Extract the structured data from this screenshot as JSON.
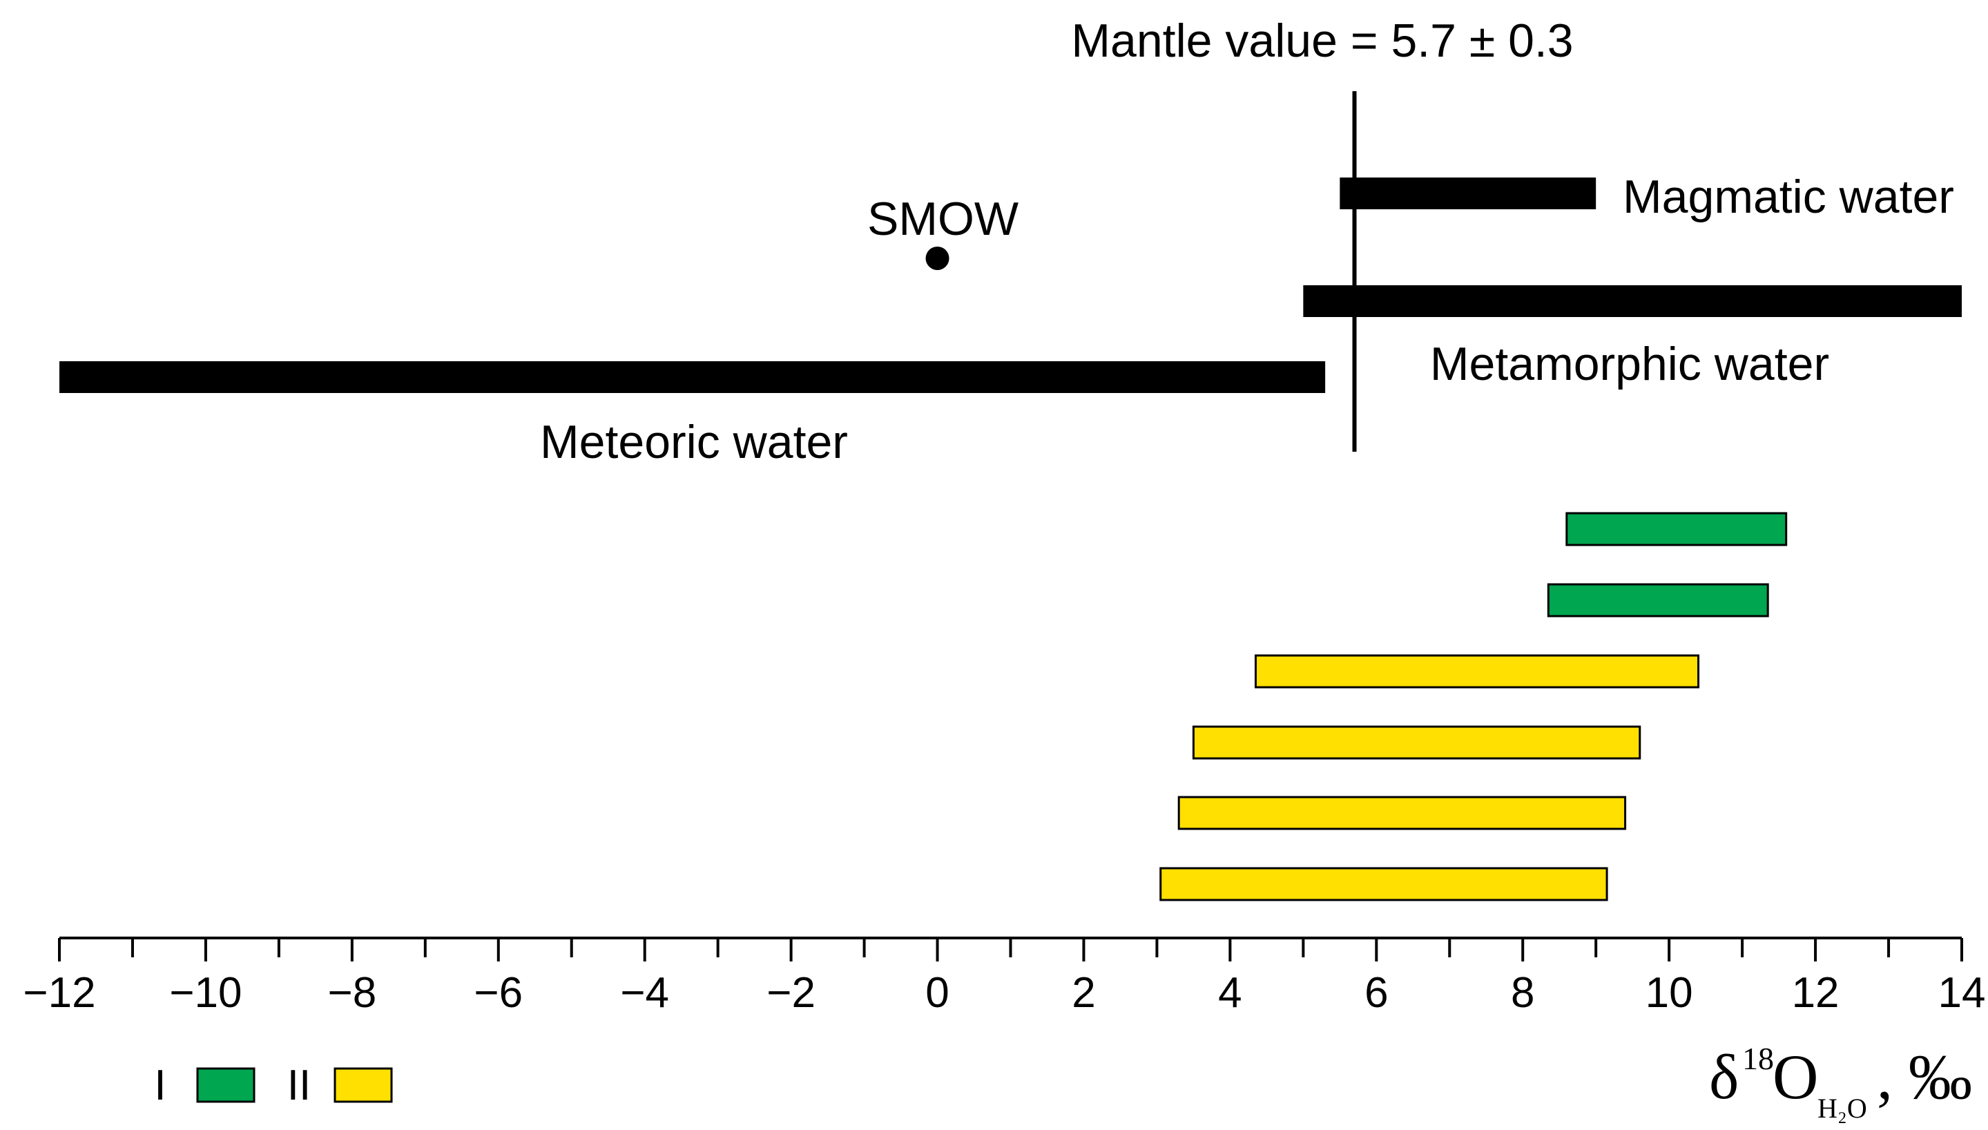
{
  "chart_data": {
    "type": "range-bar",
    "xlim": [
      -12,
      14
    ],
    "xticks": [
      -12,
      -10,
      -8,
      -6,
      -4,
      -2,
      0,
      2,
      4,
      6,
      8,
      10,
      12,
      14
    ],
    "xtick_labels": [
      "−12",
      "−10",
      "−8",
      "−6",
      "−4",
      "−2",
      "0",
      "2",
      "4",
      "6",
      "8",
      "10",
      "12",
      "14"
    ],
    "minor_tick_step": 1,
    "xlabel": {
      "delta": "δ",
      "sup": "18",
      "o": "O",
      "sub": "H₂O",
      "tail": ", ‰"
    },
    "mantle": {
      "value": 5.7,
      "label": "Mantle value = 5.7 ± 0.3"
    },
    "reference_point": {
      "name": "SMOW",
      "x": 0
    },
    "reference_ranges": [
      {
        "name": "Magmatic water",
        "range": [
          5.5,
          9.0
        ]
      },
      {
        "name": "Metamorphic water",
        "range": [
          5.0,
          14.0
        ]
      },
      {
        "name": "Meteoric water",
        "range": [
          -12.0,
          5.3
        ]
      }
    ],
    "samples": [
      {
        "group": "I",
        "range": [
          8.6,
          11.6
        ]
      },
      {
        "group": "I",
        "range": [
          8.35,
          11.35
        ]
      },
      {
        "group": "II",
        "range": [
          4.35,
          10.4
        ]
      },
      {
        "group": "II",
        "range": [
          3.5,
          9.6
        ]
      },
      {
        "group": "II",
        "range": [
          3.3,
          9.4
        ]
      },
      {
        "group": "II",
        "range": [
          3.05,
          9.15
        ]
      }
    ],
    "legend": [
      {
        "label": "I",
        "color": "#00A650"
      },
      {
        "label": "II",
        "color": "#FFE000"
      }
    ]
  }
}
